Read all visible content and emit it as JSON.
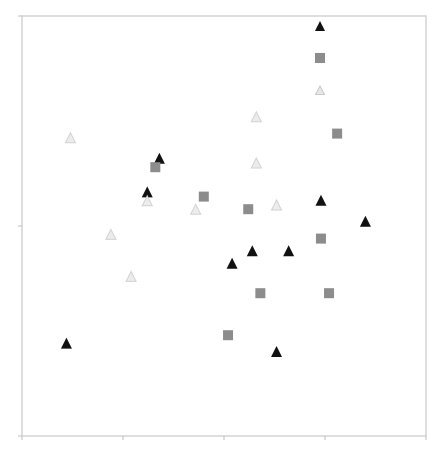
{
  "chart_data": {
    "type": "scatter",
    "title": "",
    "xlabel": "",
    "ylabel": "",
    "xlim": [
      0,
      100
    ],
    "ylim": [
      0,
      100
    ],
    "grid": false,
    "legend_position": "top-right",
    "series": [
      {
        "name": "",
        "marker": "triangle",
        "color": "#111111",
        "points": [
          {
            "x": 34,
            "y": 66
          },
          {
            "x": 31,
            "y": 58
          },
          {
            "x": 52,
            "y": 41
          },
          {
            "x": 57,
            "y": 44
          },
          {
            "x": 66,
            "y": 44
          },
          {
            "x": 74,
            "y": 56
          },
          {
            "x": 85,
            "y": 51
          },
          {
            "x": 11,
            "y": 22
          },
          {
            "x": 63,
            "y": 20
          }
        ]
      },
      {
        "name": "",
        "marker": "square",
        "color": "#8c8c8c",
        "points": [
          {
            "x": 33,
            "y": 64
          },
          {
            "x": 45,
            "y": 57
          },
          {
            "x": 56,
            "y": 54
          },
          {
            "x": 78,
            "y": 72
          },
          {
            "x": 74,
            "y": 47
          },
          {
            "x": 59,
            "y": 34
          },
          {
            "x": 76,
            "y": 34
          },
          {
            "x": 51,
            "y": 24
          }
        ]
      },
      {
        "name": "",
        "marker": "triangle-outline",
        "color": "#d2d2d2",
        "points": [
          {
            "x": 12,
            "y": 71
          },
          {
            "x": 22,
            "y": 48
          },
          {
            "x": 27,
            "y": 38
          },
          {
            "x": 31,
            "y": 56
          },
          {
            "x": 43,
            "y": 54
          },
          {
            "x": 58,
            "y": 76
          },
          {
            "x": 58,
            "y": 65
          },
          {
            "x": 63,
            "y": 55
          }
        ]
      }
    ]
  }
}
